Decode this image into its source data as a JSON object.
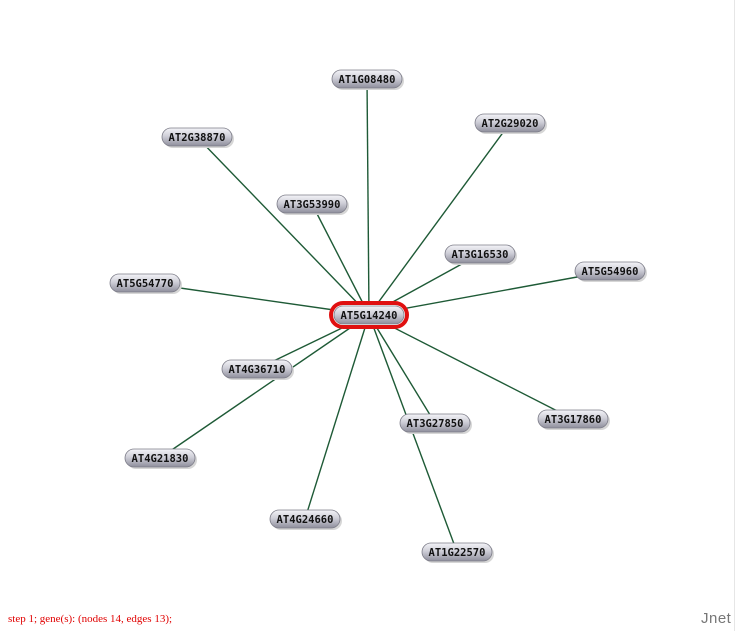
{
  "graph": {
    "center": "AT5G14240",
    "nodes": [
      {
        "id": "AT5G14240",
        "label": "AT5G14240",
        "hub": true
      },
      {
        "id": "AT1G08480",
        "label": "AT1G08480"
      },
      {
        "id": "AT2G38870",
        "label": "AT2G38870"
      },
      {
        "id": "AT2G29020",
        "label": "AT2G29020"
      },
      {
        "id": "AT3G53990",
        "label": "AT3G53990"
      },
      {
        "id": "AT3G16530",
        "label": "AT3G16530"
      },
      {
        "id": "AT5G54770",
        "label": "AT5G54770"
      },
      {
        "id": "AT5G54960",
        "label": "AT5G54960"
      },
      {
        "id": "AT4G36710",
        "label": "AT4G36710"
      },
      {
        "id": "AT3G27850",
        "label": "AT3G27850"
      },
      {
        "id": "AT3G17860",
        "label": "AT3G17860"
      },
      {
        "id": "AT4G21830",
        "label": "AT4G21830"
      },
      {
        "id": "AT4G24660",
        "label": "AT4G24660"
      },
      {
        "id": "AT1G22570",
        "label": "AT1G22570"
      }
    ],
    "edges": [
      [
        "AT5G14240",
        "AT1G08480"
      ],
      [
        "AT5G14240",
        "AT2G38870"
      ],
      [
        "AT5G14240",
        "AT2G29020"
      ],
      [
        "AT5G14240",
        "AT3G53990"
      ],
      [
        "AT5G14240",
        "AT3G16530"
      ],
      [
        "AT5G14240",
        "AT5G54770"
      ],
      [
        "AT5G14240",
        "AT5G54960"
      ],
      [
        "AT5G14240",
        "AT4G36710"
      ],
      [
        "AT5G14240",
        "AT3G27850"
      ],
      [
        "AT5G14240",
        "AT3G17860"
      ],
      [
        "AT5G14240",
        "AT4G21830"
      ],
      [
        "AT5G14240",
        "AT4G24660"
      ],
      [
        "AT5G14240",
        "AT1G22570"
      ]
    ]
  },
  "status": "step 1; gene(s):  (nodes 14, edges 13);",
  "brand": "Jnet",
  "colors": {
    "edge": "#1e5a36",
    "hub_border": "#e01010",
    "node_fill_top": "#f4f4f8",
    "node_fill_bottom": "#8e8e9c",
    "status": "#e00000"
  }
}
